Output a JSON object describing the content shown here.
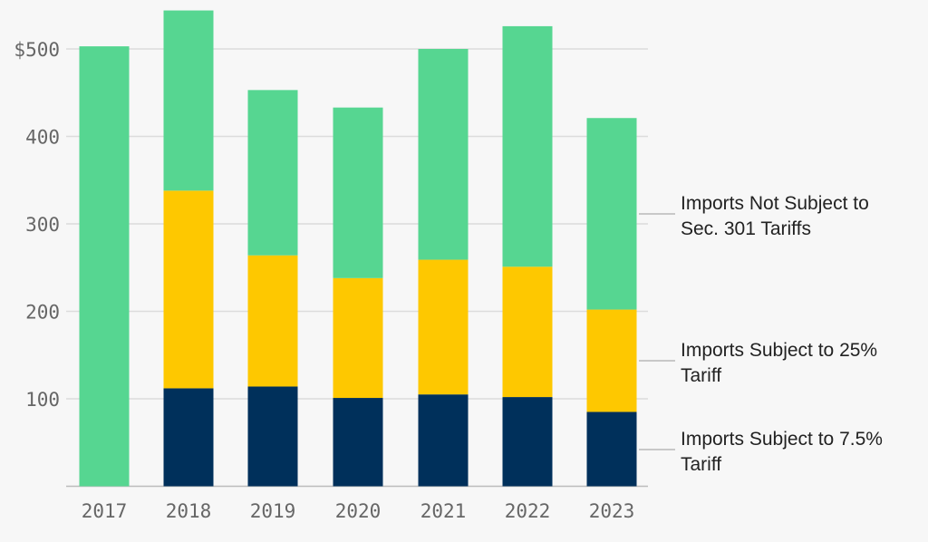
{
  "chart_data": {
    "type": "bar",
    "stacked": true,
    "categories": [
      "2017",
      "2018",
      "2019",
      "2020",
      "2021",
      "2022",
      "2023"
    ],
    "series": [
      {
        "name": "Imports Subject to 7.5% Tariff",
        "color": "#00305b",
        "values": [
          0,
          112,
          114,
          101,
          105,
          102,
          85
        ]
      },
      {
        "name": "Imports Subject to 25% Tariff",
        "color": "#fec800",
        "values": [
          0,
          226,
          150,
          137,
          154,
          149,
          117
        ]
      },
      {
        "name": "Imports Not Subject to Sec. 301 Tariffs",
        "color": "#56d691",
        "values": [
          503,
          206,
          189,
          195,
          241,
          275,
          219
        ]
      }
    ],
    "legend_lines": [
      [
        "Imports Subject to 7.5%",
        "Tariff"
      ],
      [
        "Imports Subject to 25%",
        "Tariff"
      ],
      [
        "Imports Not Subject to",
        "Sec. 301 Tariffs"
      ]
    ],
    "y_ticks": [
      "",
      "100",
      "200",
      "300",
      "400",
      "$500"
    ],
    "ylim": [
      0,
      550
    ],
    "grid": true,
    "legend_placement": "right, direct labels"
  }
}
